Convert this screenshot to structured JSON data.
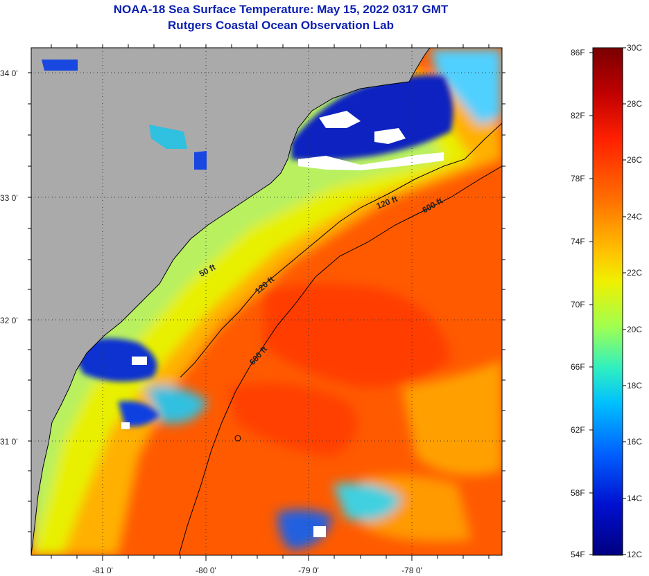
{
  "title": {
    "line1": "NOAA-18 Sea Surface Temperature:  May 15, 2022 0317 GMT",
    "line2": "Rutgers Coastal Ocean Observation Lab"
  },
  "map": {
    "lat_labels": [
      "34 0'",
      "33 0'",
      "32 0'",
      "31 0'"
    ],
    "lon_labels": [
      "-81 0'",
      "-80 0'",
      "-79 0'",
      "-78 0'"
    ],
    "isobath_labels": [
      "50 ft",
      "120 ft",
      "120 ft",
      "600 ft",
      "600 ft"
    ]
  },
  "colorbar": {
    "fahrenheit": [
      "86F",
      "82F",
      "78F",
      "74F",
      "70F",
      "66F",
      "62F",
      "58F",
      "54F"
    ],
    "celsius": [
      "30C",
      "28C",
      "26C",
      "24C",
      "22C",
      "20C",
      "18C",
      "16C",
      "14C",
      "12C"
    ],
    "colors": [
      "#7a0000",
      "#c00000",
      "#ff2000",
      "#ff7000",
      "#ffc000",
      "#f0f000",
      "#a0ff50",
      "#30f0c0",
      "#00c0ff",
      "#0060ff",
      "#0010d0",
      "#000080"
    ]
  },
  "colors": {
    "land": "#aaaaaa",
    "title": "#0a1fb0",
    "grid": "#333333"
  }
}
